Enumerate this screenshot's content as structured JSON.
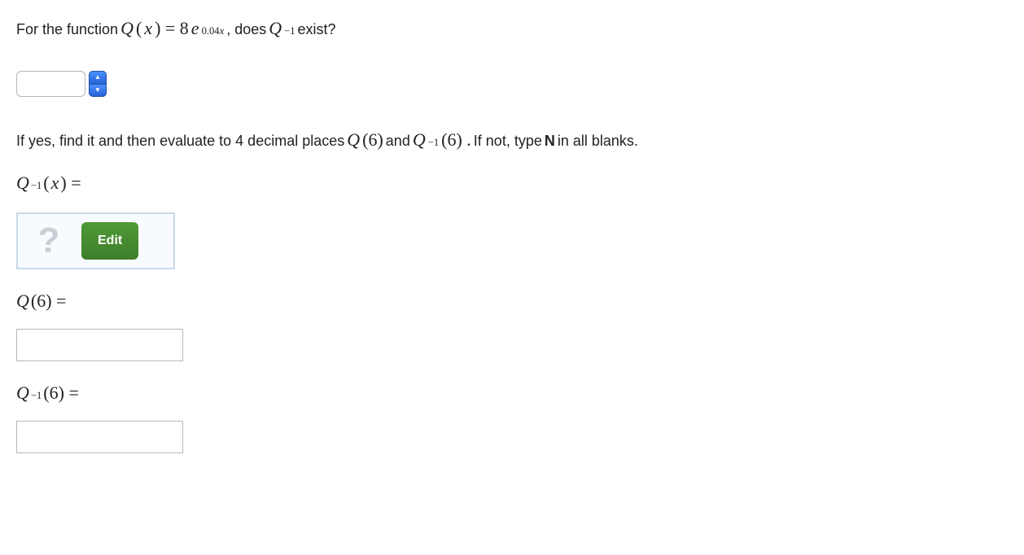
{
  "line1": {
    "t1": "For the function  ",
    "fn_Q": "Q",
    "fn_open": "(",
    "fn_x": "x",
    "fn_close_eq": ") = 8",
    "e": "e",
    "exp_004": "0.04",
    "exp_x": "x",
    "t2": " ,  does  ",
    "Q2": "Q",
    "sup_neg1": "−1",
    "t3": "  exist?"
  },
  "line2": {
    "t1": "If yes, find it and then evaluate to 4 decimal places  ",
    "Q": "Q",
    "paren6": " (6) ",
    "and": "and  ",
    "Q2": "Q",
    "sup_neg1": "−1",
    "paren6b": " (6) . ",
    "t2": "If not, type ",
    "N": "N",
    "t3": " in all blanks."
  },
  "qinv_label": {
    "Q": "Q",
    "sup_neg1": "−1",
    "rest": "(",
    "x": "x",
    "close_eq": ") ="
  },
  "edit": {
    "placeholder_mark": "?",
    "button": "Edit"
  },
  "q6_label": {
    "Q": "Q",
    "rest": " (6) ="
  },
  "qinv6_label": {
    "Q": "Q",
    "sup_neg1": "−1",
    "rest": " (6) ="
  },
  "colors": {
    "text": "#222222",
    "edit_btn_bg_top": "#4f9a36",
    "edit_btn_bg_bottom": "#3e7e2a",
    "edit_box_border": "#c9d9e8",
    "edit_box_bg": "#f7fbff",
    "qmark": "#c9cfd4",
    "input_border": "#b8b8b8",
    "stepper_bg_top": "#4a90ff",
    "stepper_bg_bottom": "#2563d8"
  }
}
